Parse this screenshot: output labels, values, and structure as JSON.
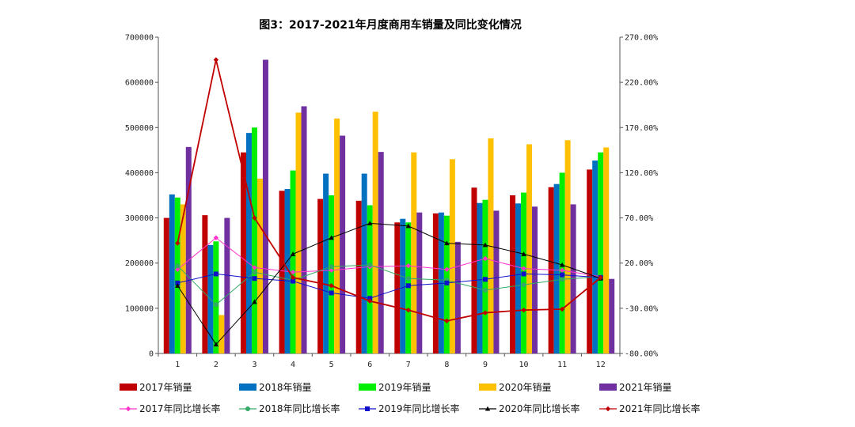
{
  "chart_data": {
    "type": "bar+line",
    "title": "图3：2017-2021年月度商用车销量及同比变化情况",
    "categories": [
      "1",
      "2",
      "3",
      "4",
      "5",
      "6",
      "7",
      "8",
      "9",
      "10",
      "11",
      "12"
    ],
    "y_left": {
      "min": 0,
      "max": 700000,
      "ticks": [
        "0",
        "100000",
        "200000",
        "300000",
        "400000",
        "500000",
        "600000",
        "700000"
      ]
    },
    "y_right": {
      "min": -80,
      "max": 270,
      "ticks": [
        "-80.00%",
        "-30.00%",
        "20.00%",
        "70.00%",
        "120.00%",
        "170.00%",
        "220.00%",
        "270.00%"
      ]
    },
    "bar_series": [
      {
        "name": "2017年销量",
        "color": "#c00000",
        "values": [
          300000,
          306000,
          445000,
          360000,
          342000,
          338000,
          290000,
          310000,
          367000,
          350000,
          368000,
          407000
        ]
      },
      {
        "name": "2018年销量",
        "color": "#0070c0",
        "values": [
          352000,
          240000,
          488000,
          364000,
          398000,
          398000,
          298000,
          312000,
          333000,
          332000,
          375000,
          427000
        ]
      },
      {
        "name": "2019年销量",
        "color": "#00ee00",
        "values": [
          345000,
          248000,
          500000,
          405000,
          350000,
          328000,
          290000,
          305000,
          340000,
          356000,
          400000,
          445000
        ]
      },
      {
        "name": "2020年销量",
        "color": "#ffc000",
        "values": [
          330000,
          85000,
          387000,
          533000,
          520000,
          535000,
          445000,
          430000,
          476000,
          463000,
          472000,
          456000
        ]
      },
      {
        "name": "2021年销量",
        "color": "#7030a0",
        "values": [
          457000,
          300000,
          650000,
          547000,
          482000,
          446000,
          312000,
          247000,
          316000,
          325000,
          330000,
          165000
        ]
      }
    ],
    "line_series": [
      {
        "name": "2017年同比增长率",
        "color": "#ff33cc",
        "marker": "diamond",
        "values": [
          13,
          48,
          15,
          10,
          12,
          16,
          17,
          13,
          25,
          14,
          12,
          5
        ]
      },
      {
        "name": "2018年同比增长率",
        "color": "#33aa66",
        "marker": "circle",
        "values": [
          17,
          -26,
          10,
          1,
          16,
          18,
          3,
          1,
          -10,
          -4,
          2,
          5
        ]
      },
      {
        "name": "2019年同比增长率",
        "color": "#1010cc",
        "marker": "square",
        "values": [
          -2,
          8,
          3,
          0,
          -13,
          -19,
          -5,
          -2,
          2,
          8,
          7,
          4
        ]
      },
      {
        "name": "2020年同比增长率",
        "color": "#000000",
        "marker": "triangle",
        "values": [
          -5,
          -70,
          -23,
          30,
          48,
          64,
          61,
          42,
          40,
          30,
          18,
          3
        ]
      },
      {
        "name": "2021年同比增长率",
        "color": "#c00000",
        "marker": "diamond",
        "values": [
          42,
          245,
          70,
          4,
          -5,
          -22,
          -32,
          -44,
          -35,
          -32,
          -31,
          4
        ]
      }
    ]
  }
}
